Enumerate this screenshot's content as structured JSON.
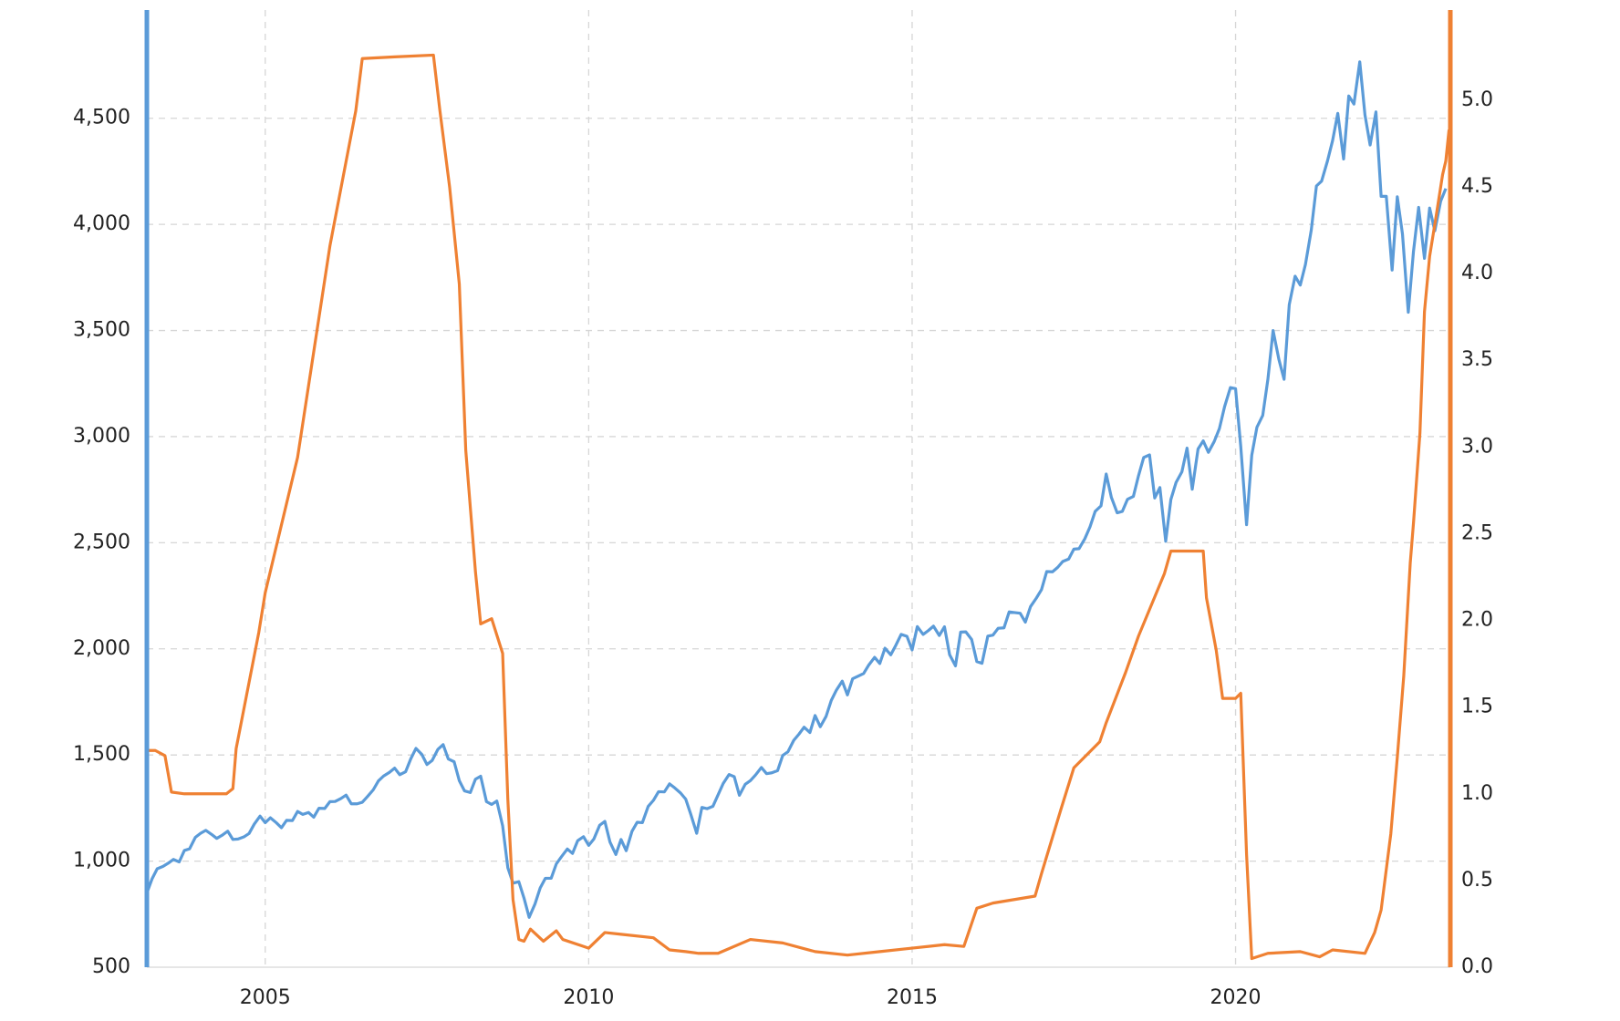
{
  "chart_data": {
    "type": "line",
    "xlim": [
      2003.17,
      2023.32
    ],
    "xticks": [
      2005,
      2010,
      2015,
      2020
    ],
    "ylim": [
      500,
      5010
    ],
    "yticks": [
      500,
      {
        "value": 1000,
        "label": "1,000"
      },
      {
        "value": 1500,
        "label": "1,500"
      },
      {
        "value": 2000,
        "label": "2,000"
      },
      {
        "value": 2500,
        "label": "2,500"
      },
      {
        "value": 3000,
        "label": "3,000"
      },
      {
        "value": 3500,
        "label": "3,500"
      },
      {
        "value": 4000,
        "label": "4,000"
      },
      {
        "value": 4500,
        "label": "4,500"
      }
    ],
    "y2lim": [
      0,
      5.52
    ],
    "y2ticks": [
      {
        "value": 0,
        "label": "0.0"
      },
      0.5,
      {
        "value": 1,
        "label": "1.0"
      },
      1.5,
      {
        "value": 2,
        "label": "2.0"
      },
      2.5,
      {
        "value": 3,
        "label": "3.0"
      },
      3.5,
      {
        "value": 4,
        "label": "4.0"
      },
      4.5,
      {
        "value": 5,
        "label": "5.0"
      }
    ],
    "grid": true,
    "series": [
      {
        "color": "#5b9bd8",
        "axis": "y",
        "x": [
          2003.17,
          2003.25,
          2003.33,
          2003.42,
          2003.5,
          2003.58,
          2003.67,
          2003.75,
          2003.83,
          2003.92,
          2004.0,
          2004.08,
          2004.17,
          2004.25,
          2004.33,
          2004.42,
          2004.5,
          2004.58,
          2004.67,
          2004.75,
          2004.83,
          2004.92,
          2005.0,
          2005.08,
          2005.17,
          2005.25,
          2005.33,
          2005.42,
          2005.5,
          2005.58,
          2005.67,
          2005.75,
          2005.83,
          2005.92,
          2006.0,
          2006.08,
          2006.17,
          2006.25,
          2006.33,
          2006.42,
          2006.5,
          2006.58,
          2006.67,
          2006.75,
          2006.83,
          2006.92,
          2007.0,
          2007.08,
          2007.17,
          2007.25,
          2007.33,
          2007.42,
          2007.5,
          2007.58,
          2007.67,
          2007.75,
          2007.83,
          2007.92,
          2008.0,
          2008.08,
          2008.17,
          2008.25,
          2008.33,
          2008.42,
          2008.5,
          2008.58,
          2008.67,
          2008.75,
          2008.83,
          2008.92,
          2009.0,
          2009.08,
          2009.17,
          2009.25,
          2009.33,
          2009.42,
          2009.5,
          2009.58,
          2009.67,
          2009.75,
          2009.83,
          2009.92,
          2010.0,
          2010.08,
          2010.17,
          2010.25,
          2010.33,
          2010.42,
          2010.5,
          2010.58,
          2010.67,
          2010.75,
          2010.83,
          2010.92,
          2011.0,
          2011.08,
          2011.17,
          2011.25,
          2011.33,
          2011.42,
          2011.5,
          2011.58,
          2011.67,
          2011.75,
          2011.83,
          2011.92,
          2012.0,
          2012.08,
          2012.17,
          2012.25,
          2012.33,
          2012.42,
          2012.5,
          2012.58,
          2012.67,
          2012.75,
          2012.83,
          2012.92,
          2013.0,
          2013.08,
          2013.17,
          2013.25,
          2013.33,
          2013.42,
          2013.5,
          2013.58,
          2013.67,
          2013.75,
          2013.83,
          2013.92,
          2014.0,
          2014.08,
          2014.17,
          2014.25,
          2014.33,
          2014.42,
          2014.5,
          2014.58,
          2014.67,
          2014.75,
          2014.83,
          2014.92,
          2015.0,
          2015.08,
          2015.17,
          2015.25,
          2015.33,
          2015.42,
          2015.5,
          2015.58,
          2015.67,
          2015.75,
          2015.83,
          2015.92,
          2016.0,
          2016.08,
          2016.17,
          2016.25,
          2016.33,
          2016.42,
          2016.5,
          2016.58,
          2016.67,
          2016.75,
          2016.83,
          2016.92,
          2017.0,
          2017.08,
          2017.17,
          2017.25,
          2017.33,
          2017.42,
          2017.5,
          2017.58,
          2017.67,
          2017.75,
          2017.83,
          2017.92,
          2018.0,
          2018.08,
          2018.17,
          2018.25,
          2018.33,
          2018.42,
          2018.5,
          2018.58,
          2018.67,
          2018.75,
          2018.83,
          2018.92,
          2019.0,
          2019.08,
          2019.17,
          2019.25,
          2019.33,
          2019.42,
          2019.5,
          2019.58,
          2019.67,
          2019.75,
          2019.83,
          2019.92,
          2020.0,
          2020.08,
          2020.17,
          2020.25,
          2020.33,
          2020.42,
          2020.5,
          2020.58,
          2020.67,
          2020.75,
          2020.83,
          2020.92,
          2021.0,
          2021.08,
          2021.17,
          2021.25,
          2021.33,
          2021.42,
          2021.5,
          2021.58,
          2021.67,
          2021.75,
          2021.83,
          2021.92,
          2022.0,
          2022.08,
          2022.17,
          2022.25,
          2022.33,
          2022.42,
          2022.5,
          2022.58,
          2022.67,
          2022.75,
          2022.83,
          2022.92,
          2023.0,
          2023.08,
          2023.17,
          2023.25
        ],
        "values": [
          850,
          916,
          964,
          975,
          990,
          1008,
          996,
          1050,
          1058,
          1112,
          1131,
          1145,
          1126,
          1107,
          1121,
          1141,
          1102,
          1104,
          1114,
          1130,
          1174,
          1212,
          1181,
          1204,
          1181,
          1157,
          1192,
          1191,
          1234,
          1220,
          1229,
          1207,
          1249,
          1248,
          1280,
          1281,
          1295,
          1311,
          1270,
          1270,
          1277,
          1304,
          1336,
          1378,
          1401,
          1418,
          1438,
          1407,
          1421,
          1482,
          1531,
          1503,
          1455,
          1474,
          1527,
          1549,
          1481,
          1468,
          1379,
          1331,
          1323,
          1386,
          1400,
          1280,
          1267,
          1283,
          1166,
          969,
          896,
          903,
          826,
          735,
          798,
          873,
          919,
          919,
          987,
          1021,
          1057,
          1036,
          1096,
          1115,
          1074,
          1104,
          1169,
          1187,
          1089,
          1031,
          1102,
          1049,
          1141,
          1183,
          1181,
          1258,
          1286,
          1327,
          1326,
          1364,
          1345,
          1321,
          1292,
          1219,
          1131,
          1253,
          1247,
          1258,
          1312,
          1366,
          1408,
          1398,
          1310,
          1362,
          1379,
          1406,
          1441,
          1412,
          1416,
          1426,
          1498,
          1515,
          1569,
          1598,
          1631,
          1606,
          1686,
          1633,
          1682,
          1757,
          1806,
          1848,
          1783,
          1859,
          1872,
          1884,
          1924,
          1960,
          1931,
          2003,
          1972,
          2018,
          2068,
          2059,
          1995,
          2105,
          2068,
          2086,
          2107,
          2063,
          2104,
          1972,
          1920,
          2079,
          2080,
          2044,
          1940,
          1932,
          2060,
          2065,
          2097,
          2099,
          2174,
          2171,
          2168,
          2126,
          2199,
          2239,
          2279,
          2364,
          2363,
          2384,
          2412,
          2423,
          2470,
          2472,
          2519,
          2575,
          2648,
          2674,
          2824,
          2714,
          2641,
          2648,
          2705,
          2718,
          2816,
          2902,
          2914,
          2711,
          2760,
          2507,
          2704,
          2784,
          2834,
          2946,
          2752,
          2942,
          2980,
          2926,
          2977,
          3038,
          3141,
          3231,
          3226,
          2954,
          2585,
          2912,
          3044,
          3100,
          3271,
          3500,
          3363,
          3270,
          3622,
          3756,
          3714,
          3811,
          3973,
          4181,
          4204,
          4298,
          4395,
          4523,
          4308,
          4605,
          4567,
          4766,
          4516,
          4374,
          4530,
          4132,
          4132,
          3785,
          4130,
          3955,
          3586,
          3872,
          4080,
          3840,
          4077,
          3970,
          4109,
          4169
        ]
      },
      {
        "color": "#ef8133",
        "axis": "y2",
        "x": [
          2003.17,
          2003.3,
          2003.45,
          2003.55,
          2003.75,
          2004.0,
          2004.2,
          2004.4,
          2004.5,
          2004.55,
          2004.9,
          2005.0,
          2005.5,
          2006.0,
          2006.4,
          2006.5,
          2007.0,
          2007.6,
          2007.7,
          2007.85,
          2008.0,
          2008.1,
          2008.25,
          2008.33,
          2008.5,
          2008.67,
          2008.75,
          2008.83,
          2008.92,
          2009.0,
          2009.1,
          2009.3,
          2009.5,
          2009.6,
          2010.0,
          2010.25,
          2010.5,
          2011.0,
          2011.25,
          2011.5,
          2011.7,
          2012.0,
          2012.5,
          2013.0,
          2013.5,
          2014.0,
          2014.5,
          2015.0,
          2015.5,
          2015.8,
          2016.0,
          2016.25,
          2016.9,
          2017.0,
          2017.3,
          2017.5,
          2017.9,
          2018.0,
          2018.3,
          2018.5,
          2018.9,
          2019.0,
          2019.5,
          2019.55,
          2019.7,
          2019.8,
          2020.0,
          2020.08,
          2020.17,
          2020.25,
          2020.5,
          2021.0,
          2021.3,
          2021.5,
          2022.0,
          2022.15,
          2022.25,
          2022.4,
          2022.5,
          2022.6,
          2022.7,
          2022.75,
          2022.85,
          2022.92,
          2023.0,
          2023.1,
          2023.2,
          2023.25,
          2023.3
        ],
        "values": [
          1.25,
          1.25,
          1.22,
          1.01,
          1.0,
          1.0,
          1.0,
          1.0,
          1.03,
          1.26,
          1.93,
          2.16,
          2.94,
          4.16,
          4.94,
          5.24,
          5.25,
          5.26,
          4.94,
          4.5,
          3.94,
          2.98,
          2.28,
          1.98,
          2.01,
          1.81,
          0.97,
          0.39,
          0.16,
          0.15,
          0.22,
          0.15,
          0.21,
          0.16,
          0.11,
          0.2,
          0.19,
          0.17,
          0.1,
          0.09,
          0.08,
          0.08,
          0.16,
          0.14,
          0.09,
          0.07,
          0.09,
          0.11,
          0.13,
          0.12,
          0.34,
          0.37,
          0.41,
          0.54,
          0.91,
          1.15,
          1.3,
          1.41,
          1.7,
          1.91,
          2.27,
          2.4,
          2.4,
          2.13,
          1.83,
          1.55,
          1.55,
          1.58,
          0.65,
          0.05,
          0.08,
          0.09,
          0.06,
          0.1,
          0.08,
          0.2,
          0.33,
          0.77,
          1.21,
          1.68,
          2.33,
          2.56,
          3.08,
          3.78,
          4.1,
          4.33,
          4.57,
          4.65,
          4.83
        ]
      }
    ]
  }
}
